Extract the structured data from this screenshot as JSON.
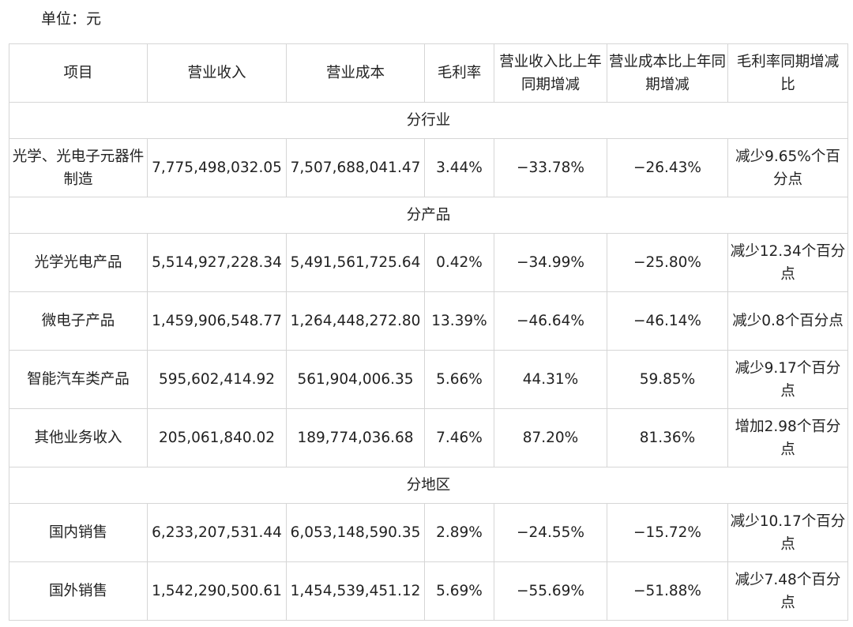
{
  "unit_label": "单位：元",
  "headers": [
    "项目",
    "营业收入",
    "营业成本",
    "毛利率",
    "营业收入比上年同期增减",
    "营业成本比上年同期增减",
    "毛利率同期增减比"
  ],
  "sections": [
    {
      "title": "分行业",
      "rows": [
        [
          "光学、光电子元器件制造",
          "7,775,498,032.05",
          "7,507,688,041.47",
          "3.44%",
          "−33.78%",
          "−26.43%",
          "减少9.65%个百分点"
        ]
      ]
    },
    {
      "title": "分产品",
      "rows": [
        [
          "光学光电产品",
          "5,514,927,228.34",
          "5,491,561,725.64",
          "0.42%",
          "−34.99%",
          "−25.80%",
          "减少12.34个百分点"
        ],
        [
          "微电子产品",
          "1,459,906,548.77",
          "1,264,448,272.80",
          "13.39%",
          "−46.64%",
          "−46.14%",
          "减少0.8个百分点"
        ],
        [
          "智能汽车类产品",
          "595,602,414.92",
          "561,904,006.35",
          "5.66%",
          "44.31%",
          "59.85%",
          "减少9.17个百分点"
        ],
        [
          "其他业务收入",
          "205,061,840.02",
          "189,774,036.68",
          "7.46%",
          "87.20%",
          "81.36%",
          "增加2.98个百分点"
        ]
      ]
    },
    {
      "title": "分地区",
      "rows": [
        [
          "国内销售",
          "6,233,207,531.44",
          "6,053,148,590.35",
          "2.89%",
          "−24.55%",
          "−15.72%",
          "减少10.17个百分点"
        ],
        [
          "国外销售",
          "1,542,290,500.61",
          "1,454,539,451.12",
          "5.69%",
          "−55.69%",
          "−51.88%",
          "减少7.48个百分点"
        ]
      ]
    }
  ]
}
